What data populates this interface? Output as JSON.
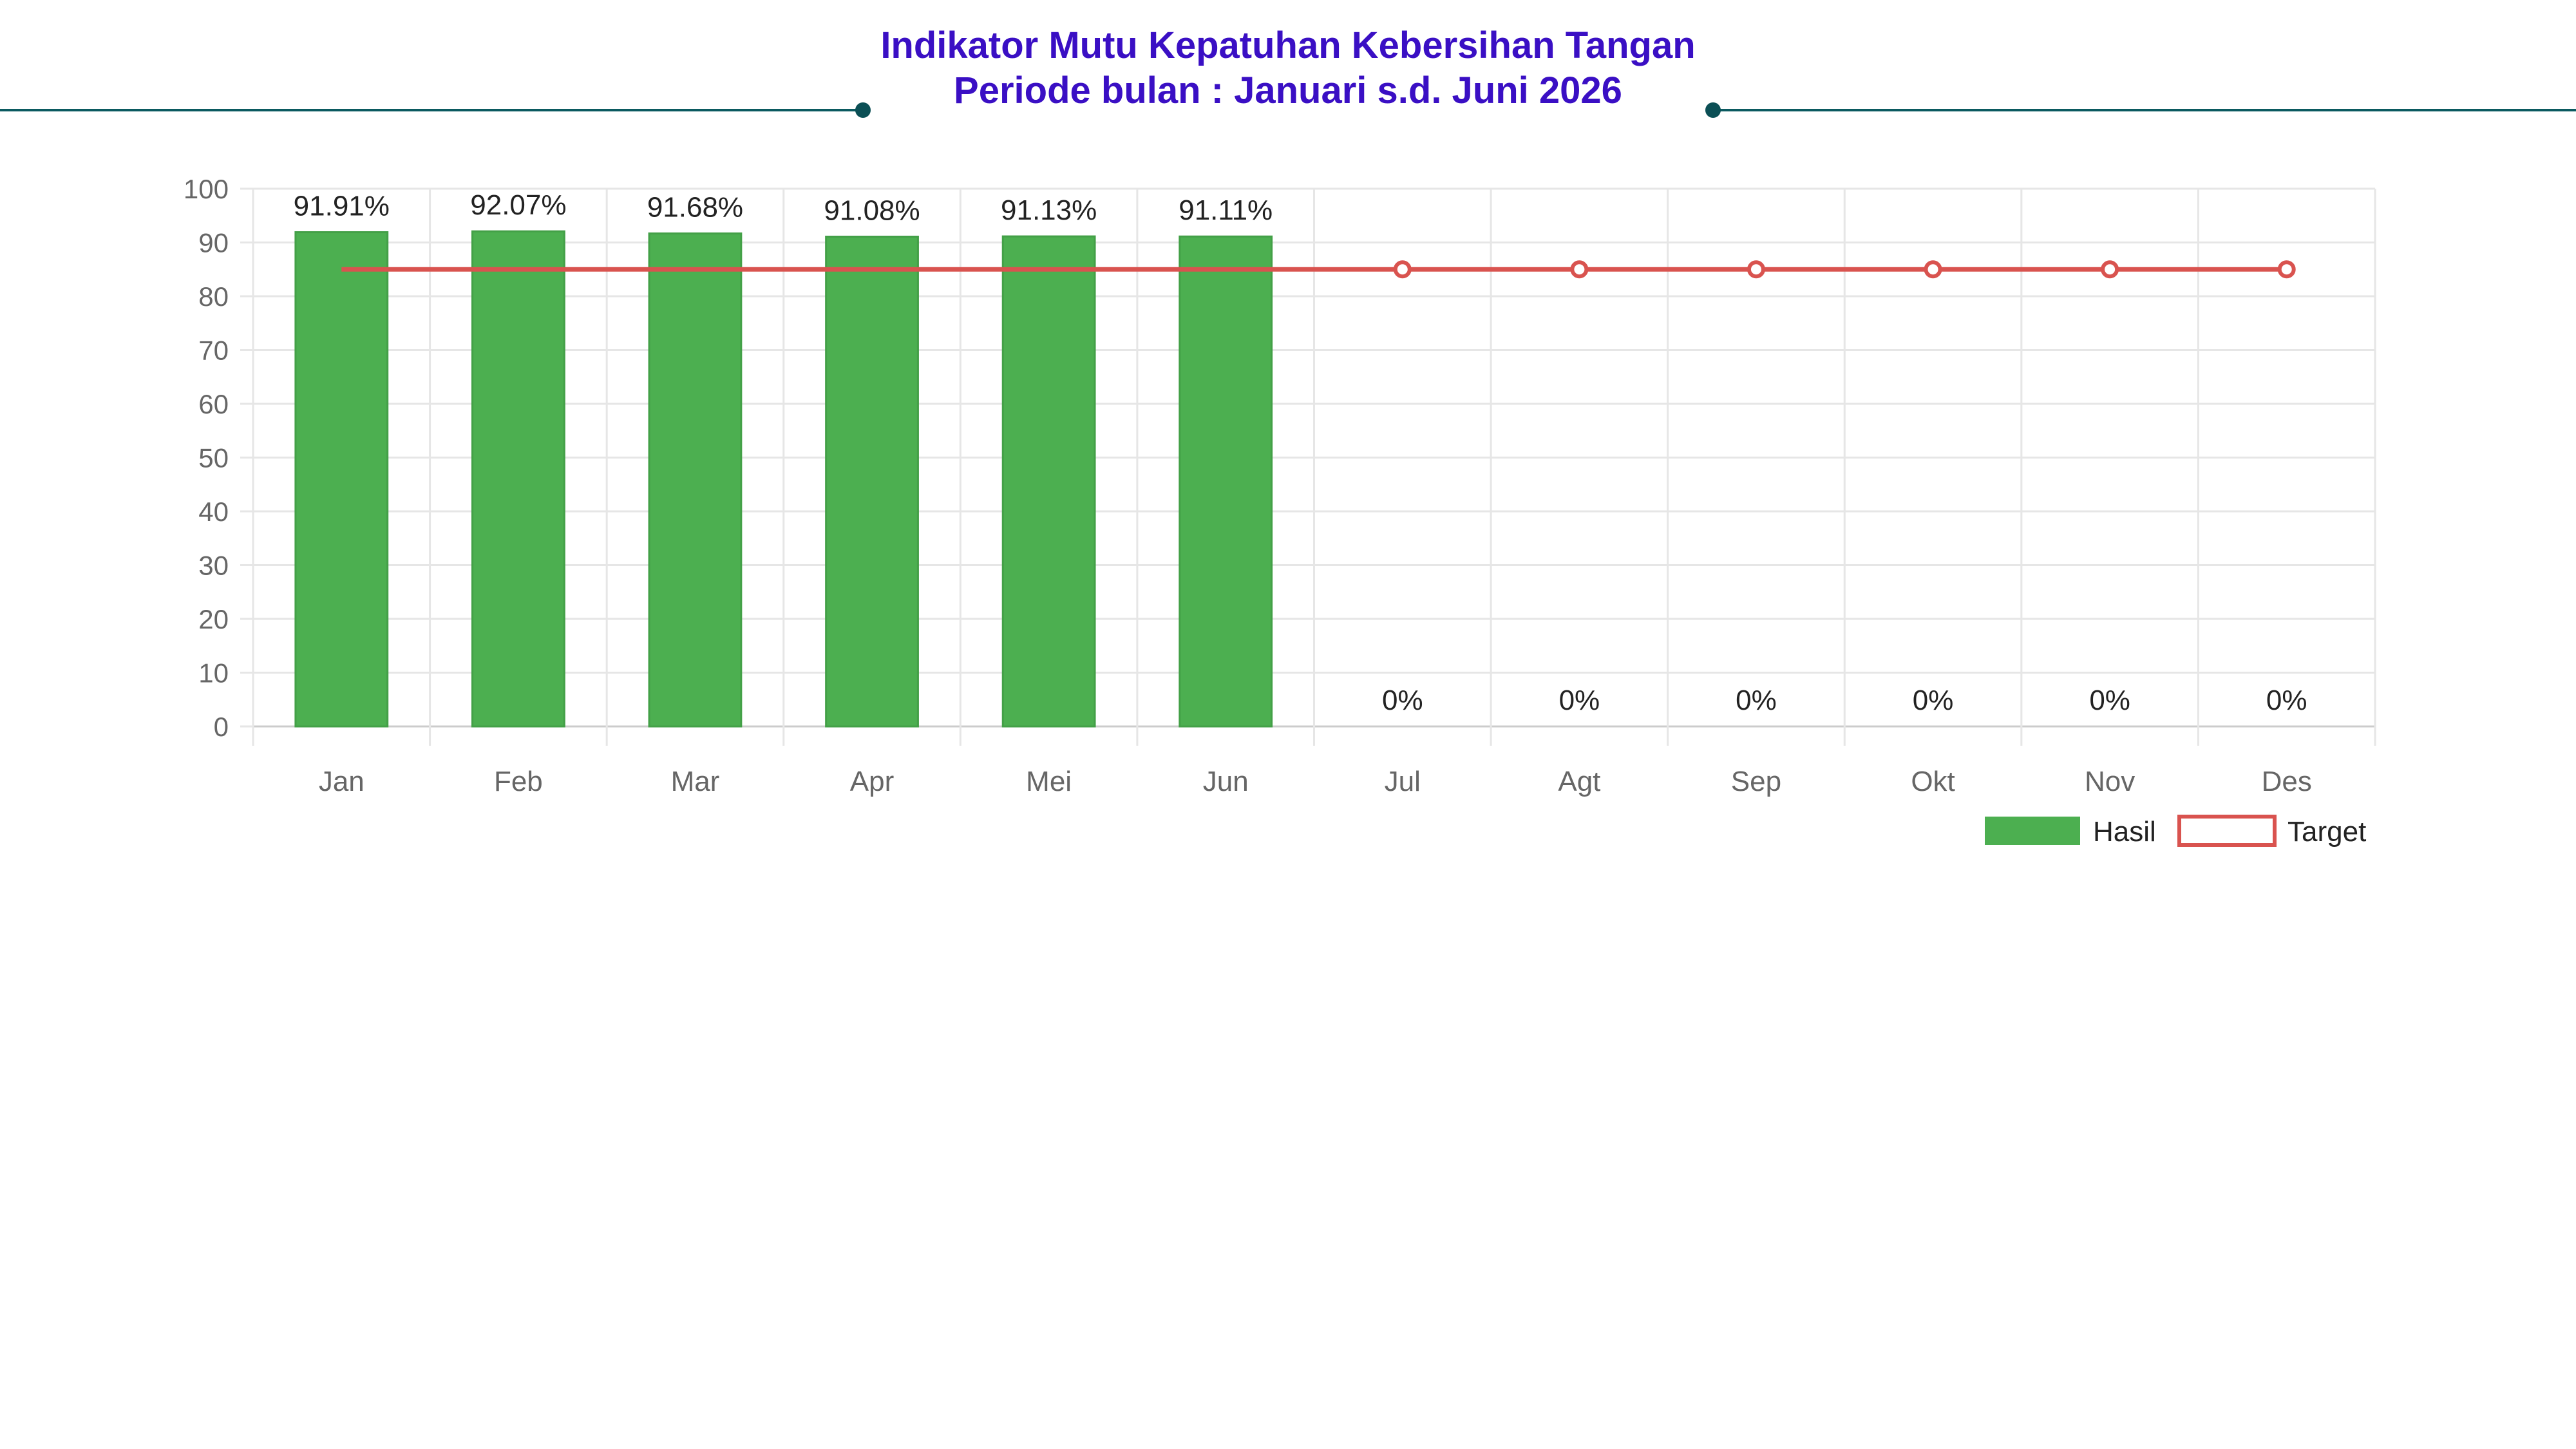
{
  "header": {
    "title_line1": "Indikator Mutu Kepatuhan Kebersihan Tangan",
    "title_line2": "Periode bulan : Januari s.d. Juni 2026"
  },
  "colors": {
    "title": "#3a0fc4",
    "rule": "#0b5a60",
    "bar": "#4caf50",
    "target_line": "#d9534f",
    "grid": "#e6e6e6",
    "axis_text": "#666666"
  },
  "chart_data": {
    "type": "bar",
    "categories": [
      "Jan",
      "Feb",
      "Mar",
      "Apr",
      "Mei",
      "Jun",
      "Jul",
      "Agt",
      "Sep",
      "Okt",
      "Nov",
      "Des"
    ],
    "series": [
      {
        "name": "Hasil",
        "type": "bar",
        "values": [
          91.91,
          92.07,
          91.68,
          91.08,
          91.13,
          91.11,
          0,
          0,
          0,
          0,
          0,
          0
        ],
        "labels": [
          "91.91%",
          "92.07%",
          "91.68%",
          "91.08%",
          "91.13%",
          "91.11%",
          "0%",
          "0%",
          "0%",
          "0%",
          "0%",
          "0%"
        ]
      },
      {
        "name": "Target",
        "type": "line",
        "values": [
          85,
          85,
          85,
          85,
          85,
          85,
          85,
          85,
          85,
          85,
          85,
          85
        ]
      }
    ],
    "ylim": [
      0,
      100
    ],
    "yticks": [
      0,
      10,
      20,
      30,
      40,
      50,
      60,
      70,
      80,
      90,
      100
    ],
    "grid": true,
    "legend_position": "bottom-right"
  }
}
